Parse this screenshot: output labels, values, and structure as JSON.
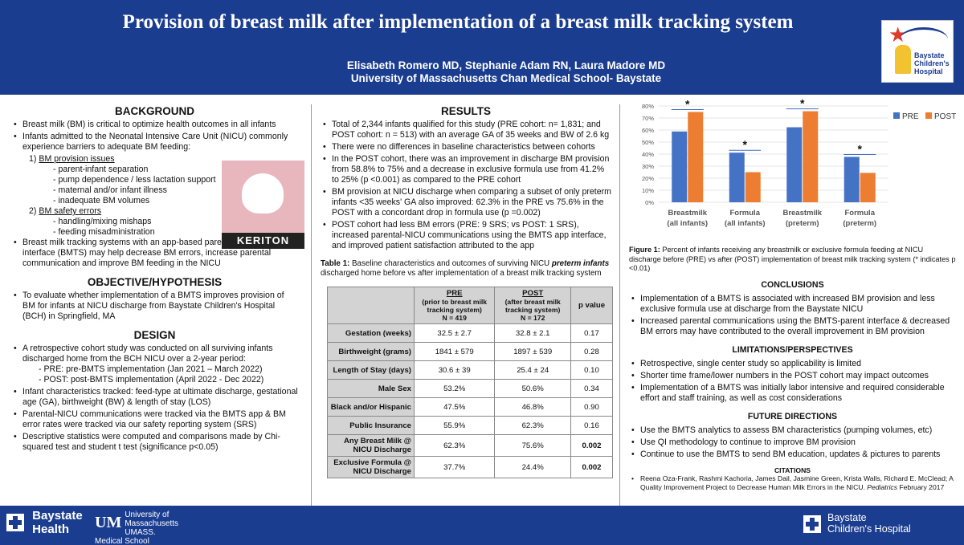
{
  "header": {
    "title": "Provision of breast milk after implementation of a breast milk tracking system",
    "authors": "Elisabeth Romero MD, Stephanie Adam RN, Laura Madore MD",
    "affiliation": "University of Massachusetts Chan Medical School- Baystate",
    "logo_text_1": "Baystate",
    "logo_text_2": "Children's",
    "logo_text_3": "Hospital"
  },
  "background": {
    "heading": "BACKGROUND",
    "b1": "Breast milk (BM) is critical to optimize health outcomes in all infants",
    "b2": "Infants admitted to the Neonatal Intensive Care Unit (NICU) commonly experience barriers to adequate BM feeding:",
    "n1_num": "1)",
    "n1": "BM provision issues",
    "n1_items": [
      "- parent-infant separation",
      "- pump dependence / less lactation support",
      "- maternal and/or infant illness",
      "- inadequate BM volumes"
    ],
    "n2_num": "2)",
    "n2": "BM safety errors",
    "n2_items": [
      "- handling/mixing mishaps",
      "- feeding misadministration"
    ],
    "b3": "Breast milk tracking systems with an app-based parent communication interface (BMTS) may help decrease BM errors, increase parental communication and improve BM feeding in the NICU",
    "keriton": "KERITON"
  },
  "objective": {
    "heading": "OBJECTIVE/HYPOTHESIS",
    "b1": "To evaluate whether implementation of a BMTS improves provision of BM for infants at NICU discharge from Baystate Children's Hospital (BCH) in Springfield, MA"
  },
  "design": {
    "heading": "DESIGN",
    "b1": "A retrospective cohort study was conducted on all surviving infants discharged home from the BCH NICU over a 2-year period:",
    "s1": "- PRE: pre-BMTS implementation (Jan 2021 – March 2022)",
    "s2": "- POST: post-BMTS implementation (April 2022 - Dec 2022)",
    "b2": "Infant characteristics tracked: feed-type at ultimate discharge, gestational age (GA), birthweight (BW) & length of stay (LOS)",
    "b3": "Parental-NICU communications were tracked via the BMTS app & BM error rates were tracked via our safety reporting system (SRS)",
    "b4": "Descriptive statistics were computed and comparisons made by Chi-squared test and student t test (significance p<0.05)"
  },
  "results": {
    "heading": "RESULTS",
    "b1": "Total of 2,344 infants qualified for this study (PRE cohort: n= 1,831; and POST cohort: n = 513) with an average GA of 35 weeks and BW of 2.6 kg",
    "b2": "There were no differences in baseline characteristics between cohorts",
    "b3": "In the POST cohort, there was an improvement in discharge BM provision from 58.8% to 75% and a decrease in exclusive formula use from 41.2% to 25% (p <0.001) as compared to the PRE cohort",
    "b4": "BM provision at NICU discharge when comparing a subset of only preterm infants <35 weeks' GA also improved: 62.3% in the PRE vs 75.6% in the POST with a concordant drop in formula use (p =0.002)",
    "b5": "POST cohort had less BM errors (PRE: 9 SRS; vs POST: 1 SRS), increased parental-NICU communications using the BMTS app interface, and improved patient satisfaction attributed to the app"
  },
  "table": {
    "caption_a": "Table 1:",
    "caption_b": " Baseline characteristics and outcomes of surviving NICU ",
    "caption_c": "preterm infants",
    "caption_d": " discharged home before  vs after implementation of a breast milk tracking system",
    "h_pre_1": "PRE",
    "h_pre_2": "(prior to breast milk tracking system)",
    "h_pre_3": "N = 419",
    "h_post_1": "POST",
    "h_post_2": "(after breast milk tracking system)",
    "h_post_3": "N = 172",
    "h_p": "p value",
    "rows": [
      {
        "label": "Gestation (weeks)",
        "pre": "32.5 ± 2.7",
        "post": "32.8 ± 2.1",
        "p": "0.17"
      },
      {
        "label": "Birthweight (grams)",
        "pre": "1841 ± 579",
        "post": "1897 ± 539",
        "p": "0.28"
      },
      {
        "label": "Length of Stay (days)",
        "pre": "30.6 ± 39",
        "post": "25.4 ± 24",
        "p": "0.10"
      },
      {
        "label": "Male Sex",
        "pre": "53.2%",
        "post": "50.6%",
        "p": "0.34"
      },
      {
        "label": "Black and/or Hispanic",
        "pre": "47.5%",
        "post": "46.8%",
        "p": "0.90"
      },
      {
        "label": "Public Insurance",
        "pre": "55.9%",
        "post": "62.3%",
        "p": "0.16"
      },
      {
        "label": "Any Breast Milk @ NICU Discharge",
        "pre": "62.3%",
        "post": "75.6%",
        "p": "0.002"
      },
      {
        "label": "Exclusive Formula @ NICU Discharge",
        "pre": "37.7%",
        "post": "24.4%",
        "p": "0.002"
      }
    ]
  },
  "chart_data": {
    "type": "bar",
    "categories": [
      "Breastmilk (all infants)",
      "Formula (all infants)",
      "Breastmilk (preterm)",
      "Formula (preterm)"
    ],
    "category_lines": [
      [
        "Breastmilk",
        "(all infants)"
      ],
      [
        "Formula",
        "(all infants)"
      ],
      [
        "Breastmilk",
        "(preterm)"
      ],
      [
        "Formula",
        "(preterm)"
      ]
    ],
    "series": [
      {
        "name": "PRE",
        "values": [
          58.8,
          41.2,
          62.3,
          37.7
        ],
        "color": "#4472c4"
      },
      {
        "name": "POST",
        "values": [
          75.0,
          25.0,
          75.6,
          24.4
        ],
        "color": "#ed7d31"
      }
    ],
    "yticks": [
      "0%",
      "10%",
      "20%",
      "30%",
      "40%",
      "50%",
      "60%",
      "70%",
      "80%"
    ],
    "ylim": [
      0,
      80
    ],
    "significance_marker": "*",
    "legend": "top-right",
    "grid": true
  },
  "figure": {
    "caption_a": "Figure 1:",
    "caption_b": " Percent of infants receiving any breastmilk or exclusive formula feeding at NICU discharge before (PRE) vs after (POST) implementation of breast milk tracking system (* indicates p <0.01)"
  },
  "conclusions": {
    "heading": "CONCLUSIONS",
    "b1": "Implementation of a BMTS is associated with increased BM provision and less exclusive formula use at discharge from the Baystate NICU",
    "b2": "Increased parental communications using the BMTS-parent interface & decreased BM errors may have contributed to the overall improvement in BM provision"
  },
  "limitations": {
    "heading": "LIMITATIONS/PERSPECTIVES",
    "b1": "Retrospective, single center study so applicability is limited",
    "b2": "Shorter time frame/lower numbers in the POST cohort may impact outcomes",
    "b3": "Implementation of a BMTS was initially labor intensive and required considerable effort and staff training, as well as cost considerations"
  },
  "future": {
    "heading": "FUTURE DIRECTIONS",
    "b1": "Use the BMTS analytics to assess BM characteristics (pumping volumes, etc)",
    "b2": "Use QI methodology to continue to improve BM provision",
    "b3": "Continue to use the BMTS to send BM education, updates & pictures to parents"
  },
  "citations": {
    "heading": "CITATIONS",
    "text_a": "Reena Oza-Frank, Rashmi Kachoria, James Dail, Jasmine Green, Krista Walls, Richard E. McClead; A Quality Improvement Project to Decrease Human Milk Errors in the NICU. ",
    "text_b": "Pediatrics",
    "text_c": " February 2017"
  },
  "footer": {
    "baystate_1": "Baystate",
    "baystate_2": "Health",
    "umass_mark": "UM",
    "umass_1": "University of",
    "umass_2": "Massachusetts",
    "umass_3": "UMASS. Medical School",
    "bch_1": "Baystate",
    "bch_2": "Children's Hospital"
  }
}
